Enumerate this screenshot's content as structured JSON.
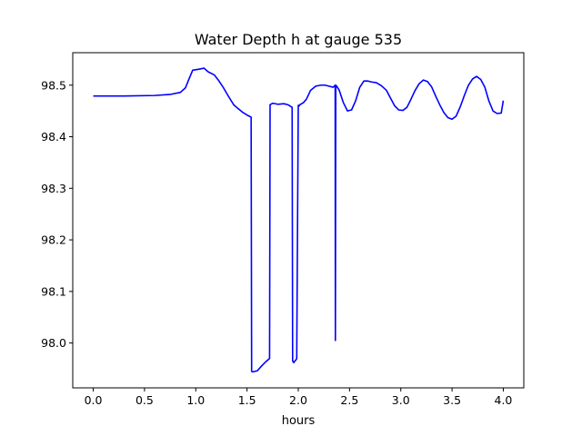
{
  "chart_data": {
    "type": "line",
    "title": "Water Depth h at gauge 535",
    "xlabel": "hours",
    "ylabel": "",
    "xlim": [
      -0.2,
      4.2
    ],
    "ylim": [
      97.913,
      98.563
    ],
    "xticks": [
      0.0,
      0.5,
      1.0,
      1.5,
      2.0,
      2.5,
      3.0,
      3.5,
      4.0
    ],
    "xtick_labels": [
      "0.0",
      "0.5",
      "1.0",
      "1.5",
      "2.0",
      "2.5",
      "3.0",
      "3.5",
      "4.0"
    ],
    "yticks": [
      98.0,
      98.1,
      98.2,
      98.3,
      98.4,
      98.5
    ],
    "ytick_labels": [
      "98.0",
      "98.1",
      "98.2",
      "98.3",
      "98.4",
      "98.5"
    ],
    "grid": false,
    "legend": "none",
    "colors": {
      "line": "#0000ff",
      "axes": "#000000",
      "background": "#ffffff"
    },
    "series": [
      {
        "x": [
          0.0,
          0.3,
          0.6,
          0.75,
          0.85,
          0.9,
          0.93,
          0.97,
          1.03,
          1.08,
          1.12,
          1.18,
          1.22,
          1.27,
          1.32,
          1.37,
          1.41,
          1.46,
          1.51,
          1.54,
          1.545,
          1.555,
          1.6,
          1.64,
          1.68,
          1.72,
          1.725,
          1.75,
          1.8,
          1.86,
          1.9,
          1.94,
          1.945,
          1.955,
          1.98,
          1.985,
          2.0,
          2.01,
          2.015,
          2.05,
          2.08,
          2.12,
          2.17,
          2.22,
          2.26,
          2.3,
          2.34,
          2.36,
          2.362,
          2.366,
          2.368,
          2.372,
          2.4,
          2.44,
          2.48,
          2.52,
          2.56,
          2.6,
          2.64,
          2.68,
          2.72,
          2.76,
          2.81,
          2.86,
          2.9,
          2.94,
          2.98,
          3.02,
          3.06,
          3.1,
          3.14,
          3.18,
          3.22,
          3.26,
          3.3,
          3.34,
          3.38,
          3.42,
          3.46,
          3.5,
          3.54,
          3.58,
          3.62,
          3.66,
          3.7,
          3.74,
          3.78,
          3.82,
          3.86,
          3.9,
          3.94,
          3.98,
          4.0
        ],
        "y": [
          98.479,
          98.479,
          98.48,
          98.482,
          98.486,
          98.495,
          98.51,
          98.529,
          98.531,
          98.533,
          98.526,
          98.52,
          98.51,
          98.495,
          98.478,
          98.462,
          98.455,
          98.447,
          98.441,
          98.438,
          97.945,
          97.944,
          97.946,
          97.955,
          97.963,
          97.97,
          98.462,
          98.465,
          98.463,
          98.464,
          98.462,
          98.457,
          97.965,
          97.962,
          97.968,
          97.97,
          98.461,
          98.46,
          98.462,
          98.466,
          98.473,
          98.49,
          98.498,
          98.5,
          98.5,
          98.498,
          98.496,
          98.5,
          98.005,
          98.5,
          98.498,
          98.499,
          98.49,
          98.466,
          98.45,
          98.452,
          98.47,
          98.496,
          98.508,
          98.508,
          98.506,
          98.505,
          98.499,
          98.49,
          98.475,
          98.46,
          98.452,
          98.451,
          98.457,
          98.473,
          98.49,
          98.503,
          98.51,
          98.507,
          98.497,
          98.479,
          98.462,
          98.447,
          98.437,
          98.434,
          98.44,
          98.458,
          98.48,
          98.5,
          98.512,
          98.517,
          98.511,
          98.496,
          98.469,
          98.45,
          98.445,
          98.446,
          98.47
        ]
      }
    ]
  }
}
